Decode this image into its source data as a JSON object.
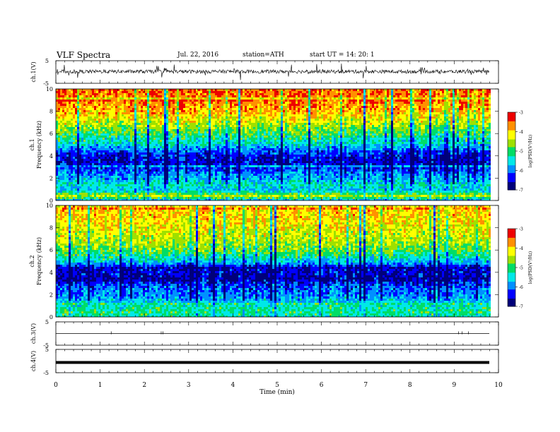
{
  "header": {
    "title": "VLF  Spectra",
    "date": "Jul.  22,  2016",
    "station": "station=ATH",
    "start": "start  UT  =    14: 20: 1"
  },
  "colors": {
    "colormap": [
      "#00007a",
      "#0000ff",
      "#0090ff",
      "#00e8e8",
      "#00dd66",
      "#9ee000",
      "#ffff00",
      "#ff9000",
      "#ee0000",
      "#ffffff"
    ],
    "trace": "#000000"
  },
  "chart_data": [
    {
      "type": "line",
      "name": "ch1-waveform",
      "ylabel": "ch.1(V)",
      "ylim": [
        -5,
        5
      ],
      "yticks": [
        "5",
        "-5"
      ],
      "xlim": [
        0,
        10
      ],
      "description_level": "noisy waveform centered near 0.2 V",
      "mean": 0.2
    },
    {
      "type": "heatmap",
      "name": "ch1-spectrogram",
      "ylabel_line1": "ch.1",
      "ylabel_line2": "Frequency  (kHz)",
      "ylim": [
        0,
        10
      ],
      "yticks": [
        "0",
        "2",
        "4",
        "6",
        "8",
        "10"
      ],
      "xlim": [
        0,
        10
      ],
      "colorbar_label": "log(PSD(V²/Hz)",
      "colorbar_range": [
        -7,
        -3
      ],
      "colorbar_ticks": [
        "-3",
        "-4",
        "-5",
        "-6",
        "-7"
      ],
      "band_profile_kHz": [
        [
          0,
          -6.0
        ],
        [
          0.5,
          -4.4
        ],
        [
          1.0,
          -5.6
        ],
        [
          1.5,
          -5.3
        ],
        [
          2.0,
          -5.7
        ],
        [
          2.5,
          -5.9
        ],
        [
          3.0,
          -6.3
        ],
        [
          3.5,
          -6.6
        ],
        [
          4.0,
          -6.4
        ],
        [
          4.5,
          -6.1
        ],
        [
          5.0,
          -5.6
        ],
        [
          6.0,
          -5.0
        ],
        [
          7.0,
          -4.4
        ],
        [
          8.0,
          -3.9
        ],
        [
          9.0,
          -3.6
        ],
        [
          10.0,
          -3.5
        ]
      ]
    },
    {
      "type": "heatmap",
      "name": "ch2-spectrogram",
      "ylabel_line1": "ch.2",
      "ylabel_line2": "Frequency  (kHz)",
      "ylim": [
        0,
        10
      ],
      "yticks": [
        "0",
        "2",
        "4",
        "6",
        "8",
        "10"
      ],
      "xlim": [
        0,
        10
      ],
      "colorbar_label": "log(PSD(V²/Hz)",
      "colorbar_range": [
        -7,
        -3
      ],
      "colorbar_ticks": [
        "-3",
        "-4",
        "-5",
        "-6",
        "-7"
      ],
      "band_profile_kHz": [
        [
          0,
          -5.3
        ],
        [
          0.5,
          -5.1
        ],
        [
          1.0,
          -5.2
        ],
        [
          1.5,
          -5.6
        ],
        [
          2.0,
          -5.9
        ],
        [
          2.5,
          -6.0
        ],
        [
          3.0,
          -6.2
        ],
        [
          3.5,
          -6.7
        ],
        [
          4.0,
          -6.5
        ],
        [
          4.5,
          -6.6
        ],
        [
          5.0,
          -5.6
        ],
        [
          6.0,
          -4.8
        ],
        [
          7.0,
          -4.4
        ],
        [
          8.0,
          -4.2
        ],
        [
          9.0,
          -4.0
        ],
        [
          10.0,
          -4.0
        ]
      ]
    },
    {
      "type": "line",
      "name": "ch3-waveform",
      "ylabel": "ch.3(V)",
      "ylim": [
        -5,
        5
      ],
      "yticks": [
        "5",
        "-5"
      ],
      "xlim": [
        0,
        10
      ],
      "mean": 0
    },
    {
      "type": "line",
      "name": "ch4-waveform",
      "ylabel": "ch.4(V)",
      "ylim": [
        -5,
        5
      ],
      "yticks": [
        "5",
        "-5"
      ],
      "xlim": [
        0,
        10
      ],
      "mean": -0.6,
      "xlabel": "Time  (min)",
      "xticks": [
        "0",
        "1",
        "2",
        "3",
        "4",
        "5",
        "6",
        "7",
        "8",
        "9",
        "10"
      ]
    }
  ]
}
